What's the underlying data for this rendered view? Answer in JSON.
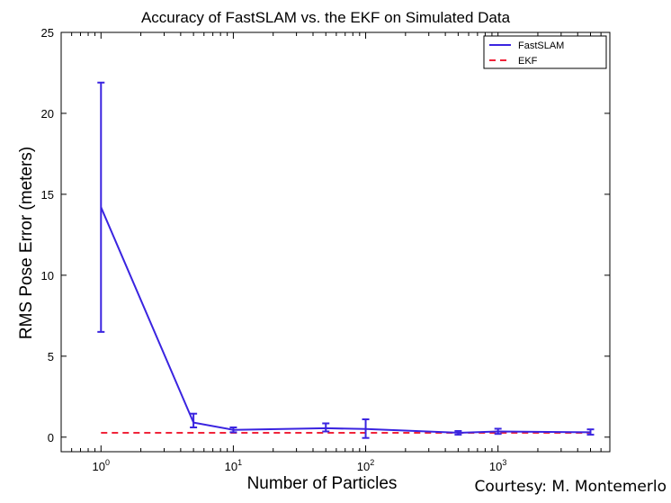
{
  "chart_data": {
    "type": "line",
    "title": "Accuracy of FastSLAM vs. the EKF on Simulated Data",
    "xlabel": "Number of Particles",
    "ylabel": "RMS Pose Error (meters)",
    "x_scale": "log",
    "x_ticks": [
      {
        "value": 1,
        "base": "10",
        "exp": "0"
      },
      {
        "value": 10,
        "base": "10",
        "exp": "1"
      },
      {
        "value": 100,
        "base": "10",
        "exp": "2"
      },
      {
        "value": 1000,
        "base": "10",
        "exp": "3"
      }
    ],
    "y_ticks": [
      0,
      5,
      10,
      15,
      20,
      25
    ],
    "ylim": [
      -0.9,
      25
    ],
    "xlim": [
      0.5,
      7000
    ],
    "grid": false,
    "legend_position": "top-right",
    "series": [
      {
        "name": "FastSLAM",
        "style": "solid",
        "color": "#3a24e0",
        "points": [
          {
            "x": 1,
            "y": 14.2,
            "lo": 6.5,
            "hi": 21.9
          },
          {
            "x": 5,
            "y": 0.9,
            "lo": 0.6,
            "hi": 1.45
          },
          {
            "x": 10,
            "y": 0.45,
            "lo": 0.3,
            "hi": 0.6
          },
          {
            "x": 50,
            "y": 0.55,
            "lo": 0.35,
            "hi": 0.85
          },
          {
            "x": 100,
            "y": 0.5,
            "lo": -0.05,
            "hi": 1.1
          },
          {
            "x": 500,
            "y": 0.27,
            "lo": 0.15,
            "hi": 0.38
          },
          {
            "x": 1000,
            "y": 0.35,
            "lo": 0.2,
            "hi": 0.52
          },
          {
            "x": 5000,
            "y": 0.3,
            "lo": 0.15,
            "hi": 0.48
          }
        ]
      },
      {
        "name": "EKF",
        "style": "dashed",
        "color": "#f0243a",
        "points": [
          {
            "x": 1,
            "y": 0.27
          },
          {
            "x": 5000,
            "y": 0.27
          }
        ]
      }
    ]
  },
  "credit": "Courtesy: M. Montemerlo"
}
